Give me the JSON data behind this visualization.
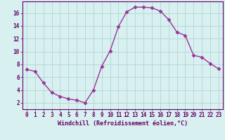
{
  "x": [
    0,
    1,
    2,
    3,
    4,
    5,
    6,
    7,
    8,
    9,
    10,
    11,
    12,
    13,
    14,
    15,
    16,
    17,
    18,
    19,
    20,
    21,
    22,
    23
  ],
  "y": [
    7.2,
    6.9,
    5.1,
    3.6,
    3.0,
    2.6,
    2.4,
    2.0,
    4.0,
    7.7,
    10.1,
    13.9,
    16.2,
    16.9,
    16.9,
    16.8,
    16.3,
    15.0,
    13.0,
    12.5,
    9.4,
    9.1,
    8.1,
    7.3
  ],
  "line_color": "#993399",
  "marker": "D",
  "marker_size": 2.5,
  "bg_color": "#d8f0f0",
  "grid_color": "#b8d8d8",
  "xlabel": "Windchill (Refroidissement éolien,°C)",
  "xlabel_color": "#660066",
  "ytick_labels": [
    "2",
    "4",
    "6",
    "8",
    "10",
    "12",
    "14",
    "16"
  ],
  "ytick_vals": [
    2,
    4,
    6,
    8,
    10,
    12,
    14,
    16
  ],
  "xlim": [
    -0.5,
    23.5
  ],
  "ylim": [
    1.0,
    17.8
  ],
  "tick_color": "#660066",
  "axis_color": "#660066",
  "font_family": "monospace",
  "tick_fontsize": 5.5,
  "xlabel_fontsize": 6.0
}
